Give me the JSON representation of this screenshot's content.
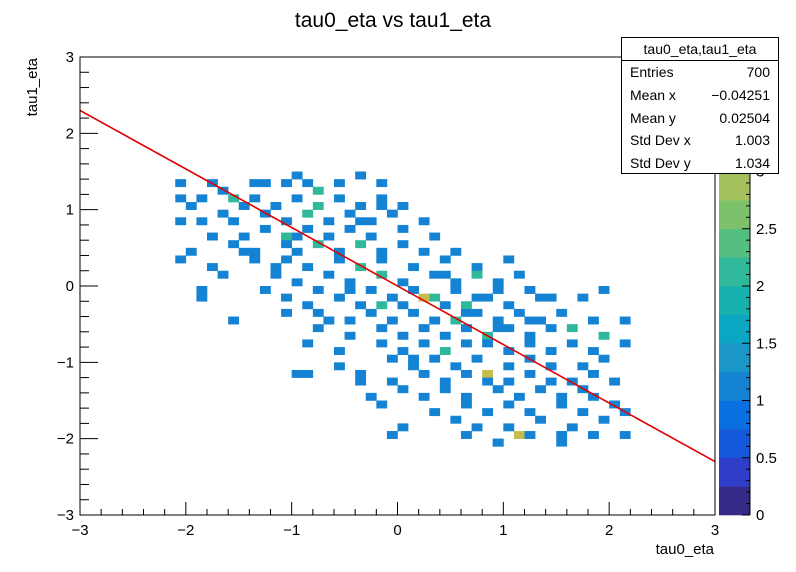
{
  "chart_data": {
    "type": "heatmap",
    "title": "tau0_eta vs tau1_eta",
    "xlabel": "tau0_eta",
    "ylabel": "tau1_eta",
    "xlim": [
      -3,
      3
    ],
    "ylim": [
      -3,
      3
    ],
    "x_ticks": [
      "−3",
      "−2",
      "−1",
      "0",
      "1",
      "2",
      "3"
    ],
    "y_ticks": [
      "−3",
      "−2",
      "−1",
      "0",
      "1",
      "2",
      "3"
    ],
    "z_ticks": [
      "0",
      "0.5",
      "1",
      "1.5",
      "2",
      "2.5",
      "3",
      "3.5"
    ],
    "zlim": [
      0,
      4
    ],
    "bins": {
      "nx": 60,
      "ny": 60
    },
    "fit_line": {
      "color": "#e00000",
      "points": [
        [
          -3,
          2.3
        ],
        [
          3,
          -2.3
        ]
      ]
    },
    "cells": [
      [
        -2.05,
        1.35,
        1
      ],
      [
        -1.75,
        1.35,
        1
      ],
      [
        -1.35,
        1.35,
        1
      ],
      [
        -1.25,
        1.35,
        1
      ],
      [
        -1.05,
        1.35,
        1
      ],
      [
        -0.95,
        1.45,
        1
      ],
      [
        -0.85,
        1.35,
        1
      ],
      [
        -0.55,
        1.35,
        1
      ],
      [
        -0.35,
        1.45,
        1
      ],
      [
        -0.15,
        1.35,
        1
      ],
      [
        -2.05,
        1.15,
        1
      ],
      [
        -1.95,
        1.05,
        1
      ],
      [
        -1.85,
        1.15,
        1
      ],
      [
        -1.55,
        1.15,
        2
      ],
      [
        -1.45,
        1.05,
        1
      ],
      [
        -1.35,
        1.15,
        1
      ],
      [
        -1.15,
        1.05,
        1
      ],
      [
        -0.95,
        1.15,
        1
      ],
      [
        -0.75,
        1.05,
        2
      ],
      [
        -0.55,
        1.15,
        1
      ],
      [
        -0.35,
        1.05,
        1
      ],
      [
        -0.15,
        1.15,
        1
      ],
      [
        0.05,
        1.05,
        1
      ],
      [
        -1.85,
        0.85,
        1
      ],
      [
        -1.65,
        0.95,
        1
      ],
      [
        -1.55,
        0.85,
        1
      ],
      [
        -1.25,
        0.95,
        1
      ],
      [
        -1.05,
        0.85,
        1
      ],
      [
        -0.85,
        0.95,
        2
      ],
      [
        -0.65,
        0.85,
        1
      ],
      [
        -0.45,
        0.95,
        1
      ],
      [
        -0.25,
        0.85,
        1
      ],
      [
        -0.05,
        0.95,
        1
      ],
      [
        0.25,
        0.85,
        1
      ],
      [
        -1.75,
        0.65,
        1
      ],
      [
        -1.25,
        0.75,
        1
      ],
      [
        -1.05,
        0.65,
        2
      ],
      [
        -0.85,
        0.75,
        1
      ],
      [
        -0.65,
        0.65,
        1
      ],
      [
        -0.45,
        0.75,
        1
      ],
      [
        -0.25,
        0.65,
        1
      ],
      [
        0.05,
        0.75,
        1
      ],
      [
        0.35,
        0.65,
        1
      ],
      [
        -1.95,
        0.45,
        1
      ],
      [
        -1.55,
        0.55,
        1
      ],
      [
        -1.45,
        0.45,
        1
      ],
      [
        -1.05,
        0.55,
        1
      ],
      [
        -0.95,
        0.45,
        1
      ],
      [
        -0.75,
        0.55,
        2
      ],
      [
        -0.55,
        0.45,
        1
      ],
      [
        -0.35,
        0.55,
        2
      ],
      [
        -0.15,
        0.45,
        1
      ],
      [
        0.05,
        0.55,
        1
      ],
      [
        0.25,
        0.45,
        1
      ],
      [
        0.55,
        0.45,
        1
      ],
      [
        -2.05,
        0.35,
        1
      ],
      [
        -1.75,
        0.25,
        1
      ],
      [
        -1.35,
        0.35,
        1
      ],
      [
        -1.05,
        0.35,
        1
      ],
      [
        -0.85,
        0.25,
        1
      ],
      [
        -0.55,
        0.35,
        1
      ],
      [
        -0.35,
        0.25,
        2
      ],
      [
        -0.15,
        0.35,
        1
      ],
      [
        0.15,
        0.25,
        1
      ],
      [
        0.45,
        0.35,
        1
      ],
      [
        0.75,
        0.25,
        1
      ],
      [
        1.05,
        0.35,
        1
      ],
      [
        -1.65,
        0.15,
        1
      ],
      [
        -1.15,
        0.15,
        1
      ],
      [
        -0.95,
        0.05,
        1
      ],
      [
        -0.65,
        0.15,
        1
      ],
      [
        -0.45,
        0.05,
        1
      ],
      [
        -0.15,
        0.15,
        2
      ],
      [
        0.05,
        0.05,
        1
      ],
      [
        0.35,
        0.15,
        1
      ],
      [
        0.55,
        0.05,
        1
      ],
      [
        0.75,
        0.15,
        2
      ],
      [
        0.95,
        0.05,
        1
      ],
      [
        1.15,
        0.15,
        1
      ],
      [
        -1.85,
        -0.05,
        1
      ],
      [
        -1.25,
        -0.05,
        1
      ],
      [
        -0.75,
        -0.05,
        1
      ],
      [
        -0.45,
        -0.05,
        1
      ],
      [
        -0.25,
        -0.05,
        1
      ],
      [
        -0.05,
        -0.15,
        1
      ],
      [
        0.15,
        -0.05,
        1
      ],
      [
        0.35,
        -0.15,
        2
      ],
      [
        0.55,
        -0.05,
        1
      ],
      [
        0.75,
        -0.15,
        1
      ],
      [
        0.95,
        -0.05,
        1
      ],
      [
        1.25,
        -0.05,
        1
      ],
      [
        1.45,
        -0.15,
        1
      ],
      [
        1.95,
        -0.05,
        1
      ],
      [
        -1.85,
        -0.15,
        1
      ],
      [
        -1.05,
        -0.15,
        1
      ],
      [
        -0.85,
        -0.25,
        1
      ],
      [
        -0.55,
        -0.15,
        1
      ],
      [
        -0.35,
        -0.25,
        1
      ],
      [
        -0.15,
        -0.25,
        2
      ],
      [
        0.05,
        -0.25,
        1
      ],
      [
        0.25,
        -0.15,
        3
      ],
      [
        0.45,
        -0.25,
        1
      ],
      [
        0.65,
        -0.25,
        2
      ],
      [
        0.85,
        -0.15,
        1
      ],
      [
        1.05,
        -0.25,
        1
      ],
      [
        1.35,
        -0.15,
        1
      ],
      [
        1.75,
        -0.15,
        1
      ],
      [
        -1.55,
        -0.45,
        1
      ],
      [
        -1.05,
        -0.35,
        1
      ],
      [
        -0.75,
        -0.35,
        1
      ],
      [
        -0.45,
        -0.45,
        1
      ],
      [
        -0.25,
        -0.35,
        1
      ],
      [
        -0.05,
        -0.45,
        1
      ],
      [
        0.15,
        -0.35,
        1
      ],
      [
        0.35,
        -0.45,
        1
      ],
      [
        0.55,
        -0.45,
        2
      ],
      [
        0.75,
        -0.35,
        1
      ],
      [
        0.95,
        -0.45,
        1
      ],
      [
        1.15,
        -0.35,
        1
      ],
      [
        1.35,
        -0.45,
        1
      ],
      [
        1.55,
        -0.35,
        1
      ],
      [
        1.85,
        -0.45,
        1
      ],
      [
        -0.75,
        -0.55,
        1
      ],
      [
        -0.45,
        -0.65,
        1
      ],
      [
        -0.15,
        -0.55,
        1
      ],
      [
        0.05,
        -0.65,
        1
      ],
      [
        0.25,
        -0.55,
        1
      ],
      [
        0.45,
        -0.65,
        1
      ],
      [
        0.65,
        -0.55,
        1
      ],
      [
        0.85,
        -0.65,
        2
      ],
      [
        1.05,
        -0.55,
        1
      ],
      [
        1.25,
        -0.65,
        1
      ],
      [
        1.45,
        -0.55,
        1
      ],
      [
        1.65,
        -0.55,
        2
      ],
      [
        1.95,
        -0.65,
        2
      ],
      [
        2.15,
        -0.45,
        1
      ],
      [
        -0.85,
        -0.75,
        1
      ],
      [
        -0.55,
        -0.85,
        1
      ],
      [
        -0.15,
        -0.75,
        1
      ],
      [
        0.05,
        -0.85,
        1
      ],
      [
        0.25,
        -0.75,
        1
      ],
      [
        0.45,
        -0.85,
        2
      ],
      [
        0.65,
        -0.75,
        1
      ],
      [
        0.85,
        -0.75,
        1
      ],
      [
        1.05,
        -0.85,
        1
      ],
      [
        1.25,
        -0.75,
        1
      ],
      [
        1.45,
        -0.85,
        1
      ],
      [
        1.65,
        -0.75,
        1
      ],
      [
        1.85,
        -0.85,
        1
      ],
      [
        2.15,
        -0.75,
        1
      ],
      [
        -0.95,
        -1.15,
        1
      ],
      [
        -0.55,
        -1.05,
        1
      ],
      [
        -0.35,
        -1.15,
        1
      ],
      [
        -0.05,
        -0.95,
        1
      ],
      [
        0.15,
        -1.05,
        1
      ],
      [
        0.35,
        -0.95,
        1
      ],
      [
        0.55,
        -1.05,
        1
      ],
      [
        0.75,
        -0.95,
        1
      ],
      [
        0.85,
        -1.15,
        3
      ],
      [
        1.05,
        -1.05,
        1
      ],
      [
        1.25,
        -0.95,
        1
      ],
      [
        1.45,
        -1.05,
        1
      ],
      [
        1.75,
        -1.05,
        1
      ],
      [
        1.95,
        -0.95,
        1
      ],
      [
        -0.85,
        -1.15,
        1
      ],
      [
        -0.35,
        -1.25,
        1
      ],
      [
        -0.05,
        -1.25,
        1
      ],
      [
        0.25,
        -1.15,
        1
      ],
      [
        0.45,
        -1.25,
        1
      ],
      [
        0.65,
        -1.15,
        1
      ],
      [
        0.85,
        -1.25,
        1
      ],
      [
        1.05,
        -1.25,
        1
      ],
      [
        1.25,
        -1.15,
        1
      ],
      [
        1.45,
        -1.25,
        1
      ],
      [
        1.65,
        -1.25,
        1
      ],
      [
        1.85,
        -1.15,
        1
      ],
      [
        2.05,
        -1.25,
        1
      ],
      [
        -0.25,
        -1.45,
        1
      ],
      [
        0.05,
        -1.35,
        1
      ],
      [
        0.25,
        -1.45,
        1
      ],
      [
        0.45,
        -1.35,
        1
      ],
      [
        0.65,
        -1.45,
        1
      ],
      [
        0.95,
        -1.35,
        1
      ],
      [
        1.15,
        -1.45,
        1
      ],
      [
        1.35,
        -1.35,
        1
      ],
      [
        1.55,
        -1.45,
        1
      ],
      [
        1.85,
        -1.45,
        1
      ],
      [
        2.05,
        -1.55,
        1
      ],
      [
        -0.15,
        -1.55,
        1
      ],
      [
        0.35,
        -1.65,
        1
      ],
      [
        0.65,
        -1.55,
        1
      ],
      [
        0.85,
        -1.65,
        1
      ],
      [
        1.05,
        -1.55,
        1
      ],
      [
        1.25,
        -1.65,
        1
      ],
      [
        1.55,
        -1.55,
        1
      ],
      [
        1.75,
        -1.65,
        1
      ],
      [
        2.15,
        -1.65,
        1
      ],
      [
        0.05,
        -1.85,
        1
      ],
      [
        0.55,
        -1.75,
        1
      ],
      [
        0.75,
        -1.85,
        1
      ],
      [
        1.05,
        -1.85,
        1
      ],
      [
        1.35,
        -1.75,
        1
      ],
      [
        1.65,
        -1.85,
        1
      ],
      [
        1.95,
        -1.75,
        1
      ],
      [
        -0.05,
        -1.95,
        1
      ],
      [
        0.65,
        -1.95,
        1
      ],
      [
        0.95,
        -2.05,
        1
      ],
      [
        1.15,
        -1.95,
        3
      ],
      [
        1.25,
        -1.95,
        1
      ],
      [
        1.55,
        -1.95,
        1
      ],
      [
        1.85,
        -1.95,
        1
      ],
      [
        2.15,
        -1.95,
        1
      ],
      [
        0.95,
        -2.05,
        1
      ],
      [
        1.55,
        -2.05,
        1
      ],
      [
        -2.05,
        0.85,
        1
      ],
      [
        -1.35,
        0.45,
        1
      ],
      [
        -0.95,
        0.65,
        1
      ],
      [
        -0.15,
        1.05,
        1
      ],
      [
        -1.65,
        1.25,
        1
      ],
      [
        -0.75,
        1.25,
        2
      ],
      [
        -1.45,
        0.65,
        1
      ],
      [
        -1.15,
        0.25,
        1
      ],
      [
        0.65,
        -0.35,
        1
      ],
      [
        1.25,
        -0.45,
        1
      ],
      [
        0.45,
        0.15,
        1
      ],
      [
        -0.35,
        0.85,
        1
      ],
      [
        1.75,
        -1.35,
        1
      ],
      [
        0.15,
        -0.95,
        1
      ],
      [
        -0.65,
        -0.45,
        1
      ],
      [
        0.95,
        -0.55,
        1
      ]
    ],
    "stats": {
      "name": "tau0_eta,tau1_eta",
      "rows": [
        {
          "label": "Entries",
          "value": "700"
        },
        {
          "label": "Mean x",
          "value": "−0.04251"
        },
        {
          "label": "Mean y",
          "value": "0.02504"
        },
        {
          "label": "Std Dev x",
          "value": "1.003"
        },
        {
          "label": "Std Dev y",
          "value": "1.034"
        }
      ]
    }
  }
}
